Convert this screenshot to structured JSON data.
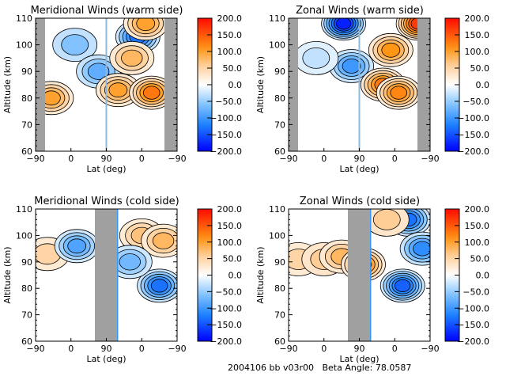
{
  "chart_data": [
    {
      "type": "heatmap",
      "subtype": "filled-contour",
      "title": "Meridional Winds (warm side)",
      "xlabel": "Lat (deg)",
      "ylabel": "Altitude (km)",
      "xticks": [
        "-90",
        "0",
        "90",
        "0",
        "-90"
      ],
      "yticks": [
        "60",
        "70",
        "80",
        "90",
        "100",
        "110"
      ],
      "ylim": [
        60,
        110
      ],
      "colorbar": {
        "ticks": [
          "200.0",
          "150.0",
          "100.0",
          "50.0",
          "0.0",
          "-50.0",
          "-100.0",
          "-150.0",
          "-200.0"
        ],
        "range": [
          -200,
          200
        ]
      },
      "no_data_lat_bands": [
        [
          -90,
          -70
        ],
        [
          70,
          -90
        ]
      ],
      "features": [
        {
          "lat_panel": "ascending",
          "lat": -50,
          "alt": 80,
          "value": 100
        },
        {
          "lat_panel": "ascending",
          "lat": 10,
          "alt": 100,
          "value": -60
        },
        {
          "lat_panel": "ascending",
          "lat": 70,
          "alt": 90,
          "value": -80
        },
        {
          "lat_panel": "descending",
          "lat": 60,
          "alt": 83,
          "value": 100
        },
        {
          "lat_panel": "descending",
          "lat": 10,
          "alt": 103,
          "value": -130
        },
        {
          "lat_panel": "descending",
          "lat": 25,
          "alt": 95,
          "value": 80
        },
        {
          "lat_panel": "descending",
          "lat": -25,
          "alt": 82,
          "value": 130
        },
        {
          "lat_panel": "descending",
          "lat": -10,
          "alt": 108,
          "value": 100
        }
      ]
    },
    {
      "type": "heatmap",
      "subtype": "filled-contour",
      "title": "Zonal Winds (warm side)",
      "xlabel": "Lat (deg)",
      "ylabel": "Altitude (km)",
      "xticks": [
        "-90",
        "0",
        "90",
        "0",
        "-90"
      ],
      "yticks": [
        "60",
        "70",
        "80",
        "90",
        "100",
        "110"
      ],
      "ylim": [
        60,
        110
      ],
      "colorbar": {
        "ticks": [
          "200.0",
          "150.0",
          "100.0",
          "50.0",
          "0.0",
          "-50.0",
          "-100.0",
          "-150.0",
          "-200.0"
        ],
        "range": [
          -200,
          200
        ]
      },
      "no_data_lat_bands": [
        [
          -90,
          -70
        ],
        [
          70,
          -90
        ]
      ],
      "features": [
        {
          "lat_panel": "ascending",
          "lat": 50,
          "alt": 108,
          "value": -180
        },
        {
          "lat_panel": "ascending",
          "lat": 70,
          "alt": 92,
          "value": -100
        },
        {
          "lat_panel": "ascending",
          "lat": -20,
          "alt": 95,
          "value": -30
        },
        {
          "lat_panel": "descending",
          "lat": 10,
          "alt": 98,
          "value": 110
        },
        {
          "lat_panel": "descending",
          "lat": 30,
          "alt": 85,
          "value": 130
        },
        {
          "lat_panel": "descending",
          "lat": -10,
          "alt": 82,
          "value": 120
        },
        {
          "lat_panel": "descending",
          "lat": -60,
          "alt": 108,
          "value": 170
        }
      ]
    },
    {
      "type": "heatmap",
      "subtype": "filled-contour",
      "title": "Meridional Winds (cold side)",
      "xlabel": "Lat (deg)",
      "ylabel": "Altitude (km)",
      "xticks": [
        "-90",
        "0",
        "90",
        "0",
        "-90"
      ],
      "yticks": [
        "60",
        "70",
        "80",
        "90",
        "100",
        "110"
      ],
      "ylim": [
        60,
        110
      ],
      "colorbar": {
        "ticks": [
          "200.0",
          "150.0",
          "100.0",
          "50.0",
          "0.0",
          "-50.0",
          "-100.0",
          "-150.0",
          "-200.0"
        ],
        "range": [
          -200,
          200
        ]
      },
      "no_data_lat_bands": [
        [
          65,
          130
        ]
      ],
      "features": [
        {
          "lat_panel": "ascending",
          "lat": -60,
          "alt": 93,
          "value": 50
        },
        {
          "lat_panel": "ascending",
          "lat": 15,
          "alt": 96,
          "value": -90
        },
        {
          "lat_panel": "descending",
          "lat": 0,
          "alt": 100,
          "value": 70
        },
        {
          "lat_panel": "descending",
          "lat": -55,
          "alt": 98,
          "value": 80
        },
        {
          "lat_panel": "descending",
          "lat": -45,
          "alt": 81,
          "value": -130
        },
        {
          "lat_panel": "descending",
          "lat": 30,
          "alt": 90,
          "value": -70
        }
      ]
    },
    {
      "type": "heatmap",
      "subtype": "filled-contour",
      "title": "Zonal Winds (cold side)",
      "xlabel": "Lat (deg)",
      "ylabel": "Altitude (km)",
      "xticks": [
        "-90",
        "0",
        "90",
        "0",
        "-90"
      ],
      "yticks": [
        "60",
        "70",
        "80",
        "90",
        "100",
        "110"
      ],
      "ylim": [
        60,
        110
      ],
      "colorbar": {
        "ticks": [
          "200.0",
          "150.0",
          "100.0",
          "50.0",
          "0.0",
          "-50.0",
          "-100.0",
          "-150.0",
          "-200.0"
        ],
        "range": [
          -200,
          200
        ]
      },
      "no_data_lat_bands": [
        [
          65,
          130
        ]
      ],
      "features": [
        {
          "lat_panel": "ascending",
          "lat": -65,
          "alt": 91,
          "value": 50
        },
        {
          "lat_panel": "ascending",
          "lat": 0,
          "alt": 91,
          "value": 60
        },
        {
          "lat_panel": "ascending",
          "lat": 45,
          "alt": 92,
          "value": 80
        },
        {
          "lat_panel": "descending",
          "lat": 80,
          "alt": 89,
          "value": 120
        },
        {
          "lat_panel": "descending",
          "lat": -20,
          "alt": 81,
          "value": -140
        },
        {
          "lat_panel": "descending",
          "lat": -35,
          "alt": 106,
          "value": -130
        },
        {
          "lat_panel": "descending",
          "lat": -70,
          "alt": 95,
          "value": -110
        },
        {
          "lat_panel": "descending",
          "lat": 20,
          "alt": 106,
          "value": 60
        }
      ]
    }
  ],
  "footer": {
    "text": "2004106 bb v03r00   Beta Angle: 78.0587"
  }
}
